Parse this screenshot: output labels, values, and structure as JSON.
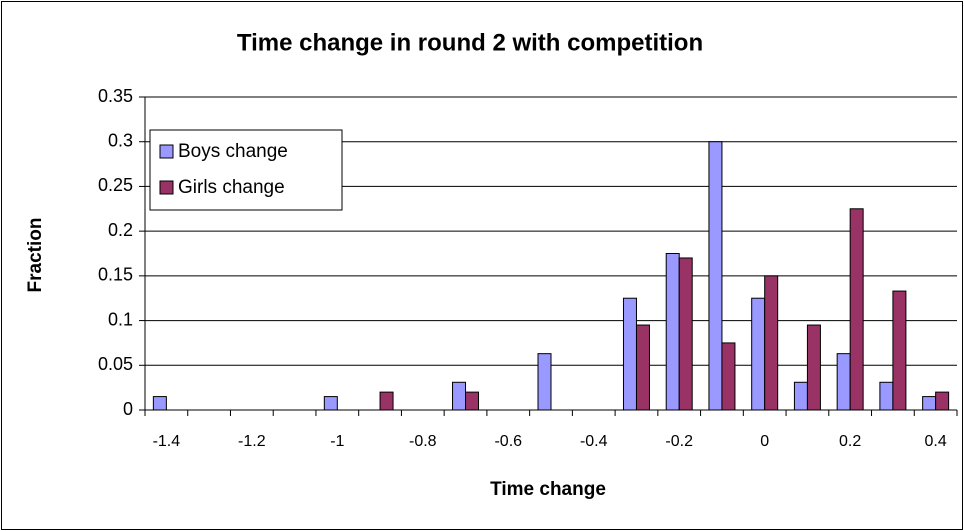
{
  "chart_data": {
    "type": "bar",
    "title": "Time change in round 2 with competition",
    "x_label": "Time change",
    "y_label": "Fraction",
    "categories": [
      "-1.4",
      null,
      "-1.2",
      null,
      "-1",
      null,
      "-0.8",
      null,
      "-0.6",
      null,
      "-0.4",
      null,
      "-0.2",
      null,
      "0",
      null,
      "0.2",
      null,
      "0.4"
    ],
    "series": [
      {
        "name": "Boys change",
        "color": "#9999ff",
        "values": [
          0.015,
          0,
          0,
          0,
          0.015,
          0,
          0,
          0.031,
          0,
          0.063,
          0,
          0.125,
          0.175,
          0.3,
          0.125,
          0.031,
          0.063,
          0.031,
          0.015
        ]
      },
      {
        "name": "Girls change",
        "color": "#993366",
        "values": [
          0,
          0,
          0,
          0,
          0,
          0.02,
          0,
          0.02,
          0,
          0,
          0,
          0.095,
          0.17,
          0.075,
          0.15,
          0.095,
          0.225,
          0.133,
          0.02
        ]
      }
    ],
    "ylim": [
      0,
      0.35
    ],
    "yticks": [
      0,
      0.05,
      0.1,
      0.15,
      0.2,
      0.25,
      0.3,
      0.35
    ],
    "grid": true,
    "legend": "upper left"
  }
}
